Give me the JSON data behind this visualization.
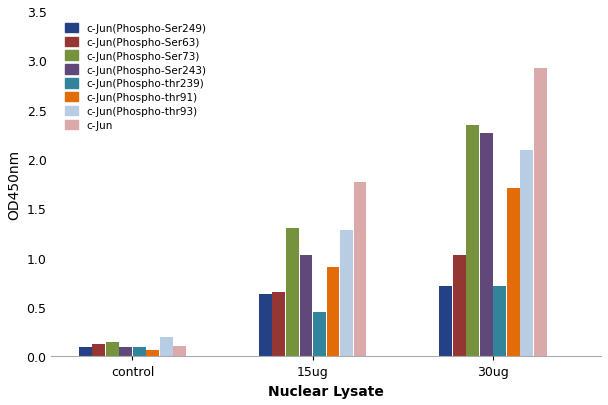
{
  "categories": [
    "control",
    "15ug",
    "30ug"
  ],
  "series": [
    {
      "label": "c-Jun(Phospho-Ser249)",
      "color": "#244185",
      "values": [
        0.1,
        0.63,
        0.71
      ]
    },
    {
      "label": "c-Jun(Phospho-Ser63)",
      "color": "#943634",
      "values": [
        0.13,
        0.65,
        1.03
      ]
    },
    {
      "label": "c-Jun(Phospho-Ser73)",
      "color": "#76923C",
      "values": [
        0.15,
        1.3,
        2.34
      ]
    },
    {
      "label": "c-Jun(Phospho-Ser243)",
      "color": "#60497A",
      "values": [
        0.1,
        1.03,
        2.26
      ]
    },
    {
      "label": "c-Jun(Phospho-thr239)",
      "color": "#31849B",
      "values": [
        0.1,
        0.45,
        0.71
      ]
    },
    {
      "label": "c-Jun(Phospho-thr91)",
      "color": "#E36C09",
      "values": [
        0.07,
        0.91,
        1.71
      ]
    },
    {
      "label": "c-Jun(Phospho-thr93)",
      "color": "#B8CCE4",
      "values": [
        0.2,
        1.28,
        2.09
      ]
    },
    {
      "label": "c-Jun",
      "color": "#DBA9A9",
      "values": [
        0.11,
        1.77,
        2.92
      ]
    }
  ],
  "xlabel": "Nuclear Lysate",
  "ylabel": "OD450nm",
  "ylim": [
    0,
    3.5
  ],
  "yticks": [
    0,
    0.5,
    1.0,
    1.5,
    2.0,
    2.5,
    3.0,
    3.5
  ],
  "background_color": "#FFFFFF",
  "bar_width": 0.075,
  "group_centers": [
    0.35,
    1.35,
    2.35
  ],
  "legend_fontsize": 7.5,
  "axis_label_fontsize": 10,
  "tick_fontsize": 9
}
